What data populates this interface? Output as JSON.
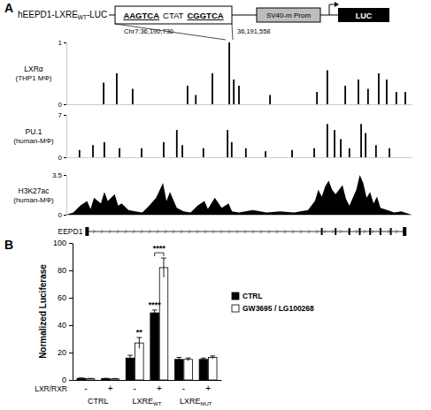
{
  "panels": [
    "A",
    "B"
  ],
  "construct": {
    "name": "hEEPD1-LXRE",
    "name_sub": "WT",
    "name_suffix": "-LUC",
    "sequence": [
      "AAGTCA",
      "CTAT",
      "CGGTCA"
    ],
    "promoter": "SV40-m Prom",
    "reporter": "LUC",
    "start": "Chr7:36,190,730",
    "end": "36,191,558"
  },
  "gene": {
    "name": "EEPD1",
    "exons": [
      6,
      74,
      78,
      82,
      85,
      88,
      91,
      94,
      98
    ]
  },
  "chart_data": [
    {
      "type": "bar",
      "title": "LXRα",
      "subtitle": "(THP1 MΦ)",
      "color": "#000000",
      "x": [
        10.8,
        14.6,
        19.2,
        35.1,
        37.5,
        42.3,
        47.2,
        48.5,
        50,
        59,
        72.6,
        75.6,
        80.8,
        84.6,
        87.4,
        90.5,
        92.8,
        95.6,
        98.2
      ],
      "values": [
        0.35,
        0.5,
        0.25,
        0.3,
        0.15,
        0.5,
        1.0,
        0.4,
        0.3,
        0.15,
        0.2,
        0.55,
        0.3,
        0.4,
        0.25,
        0.5,
        0.4,
        0.2,
        0.2
      ],
      "xlim": [
        0,
        100
      ],
      "ylim": [
        0,
        1
      ],
      "yticks": [
        0,
        1
      ],
      "tick_labels": "y"
    },
    {
      "type": "bar",
      "title": "PU.1",
      "subtitle": "(human-MΦ)",
      "color": "#000000",
      "x": [
        3.8,
        7.7,
        11,
        15.4,
        21.8,
        28.2,
        32,
        33.6,
        39.7,
        46.7,
        47.9,
        52,
        57.7,
        65.4,
        71.8,
        75.6,
        77.7,
        79.5,
        82,
        85.4,
        86.7,
        89.7,
        93.6
      ],
      "values": [
        1.2,
        2,
        2.5,
        1.5,
        1.5,
        2.5,
        4.5,
        2,
        1.5,
        4.5,
        2.5,
        1.5,
        1,
        1.2,
        1.5,
        5.5,
        4.5,
        3,
        1.5,
        5.5,
        4,
        2,
        1.5
      ],
      "xlim": [
        0,
        100
      ],
      "ylim": [
        0,
        7
      ],
      "yticks": [
        0,
        7
      ],
      "tick_labels": "y"
    },
    {
      "type": "area",
      "title": "H3K27ac",
      "subtitle": "(human-MΦ)",
      "color": "#000000",
      "x": [
        0,
        2,
        4,
        6,
        7,
        8,
        10,
        11,
        12,
        14,
        15,
        16,
        18,
        20,
        22,
        24,
        26,
        28,
        29,
        30,
        32,
        34,
        36,
        38,
        40,
        41,
        43,
        45,
        47,
        48,
        50,
        54,
        58,
        62,
        66,
        70,
        72,
        73,
        74,
        75,
        76,
        77,
        78,
        80,
        81,
        82,
        84,
        85,
        86,
        87,
        88,
        89,
        90,
        91,
        93,
        95,
        97,
        100
      ],
      "values": [
        0,
        0.2,
        0.8,
        1.2,
        0.5,
        1.5,
        1.0,
        2.0,
        1.2,
        1.8,
        0.8,
        1.0,
        0.4,
        0.3,
        0.2,
        0.8,
        1.5,
        2.8,
        1.2,
        2.0,
        0.6,
        0.3,
        0.2,
        0.8,
        1.2,
        0.5,
        1.5,
        0.6,
        1.0,
        0.3,
        0.2,
        0.4,
        0.2,
        0.3,
        0.2,
        0.4,
        1.2,
        2.2,
        1.6,
        2.5,
        3.0,
        2.2,
        1.8,
        2.6,
        1.4,
        0.8,
        2.2,
        3.5,
        2.8,
        1.5,
        2.0,
        1.0,
        1.6,
        0.6,
        0.4,
        0.2,
        0.3,
        0
      ],
      "xlim": [
        0,
        100
      ],
      "ylim": [
        0,
        3.5
      ],
      "yticks": [
        0,
        3.5
      ],
      "tick_labels": "y"
    },
    {
      "type": "bar",
      "categories": [
        "-",
        "+",
        "-",
        "+",
        "-",
        "+"
      ],
      "group_labels": [
        {
          "text": "CTRL"
        },
        {
          "text": "LXRE",
          "sub": "WT"
        },
        {
          "text": "LXRE",
          "sub": "MUT"
        }
      ],
      "xlabel": "LXR/RXR",
      "ylabel": "Normalized Luciferase",
      "ylim": [
        0,
        100
      ],
      "yticks": [
        0,
        20,
        40,
        60,
        80,
        100
      ],
      "legend": "right",
      "series": [
        {
          "name": "CTRL",
          "color": "#000000",
          "values": [
            1.2,
            1.0,
            16,
            49,
            15,
            15
          ],
          "errors": [
            0.2,
            0.2,
            2,
            2,
            1.5,
            1
          ]
        },
        {
          "name": "GW3695 / LG100268",
          "color": "#ffffff",
          "values": [
            0.9,
            0.8,
            27,
            82,
            15,
            16.5
          ],
          "errors": [
            0.2,
            0.2,
            4,
            7,
            1,
            1
          ]
        }
      ],
      "annotations": [
        {
          "text": "**",
          "series": 1,
          "index": 2
        },
        {
          "text": "****",
          "series": 0,
          "index": 3
        },
        {
          "text": "****",
          "index": 3,
          "bracket": true
        }
      ]
    }
  ]
}
